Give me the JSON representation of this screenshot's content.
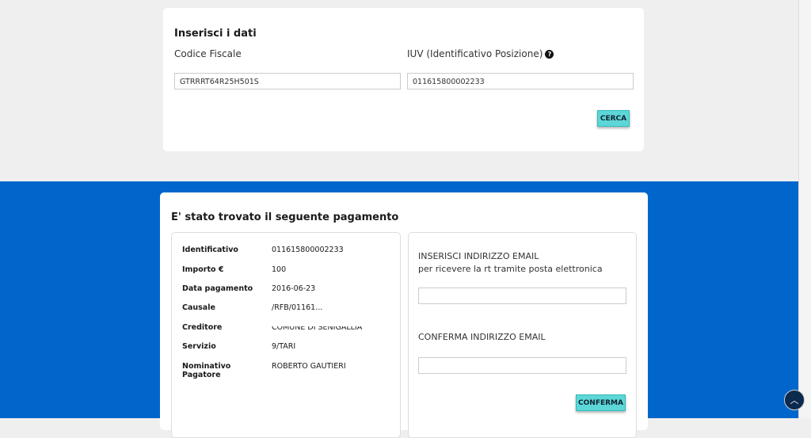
{
  "search": {
    "title": "Inserisci i dati",
    "cf_label": "Codice Fiscale",
    "cf_value": "GTRRRT64R25H501S",
    "iuv_label": "IUV (Identificativo Posizione)",
    "iuv_value": "011615800002233",
    "button": "CERCA"
  },
  "result": {
    "title": "E' stato trovato il seguente pagamento",
    "rows": [
      {
        "k": "Identificativo",
        "v": "011615800002233"
      },
      {
        "k": "Importo €",
        "v": "100"
      },
      {
        "k": "Data pagamento",
        "v": "2016-06-23"
      },
      {
        "k": "Causale",
        "v": "/RFB/01161..."
      },
      {
        "k": "Creditore",
        "v": "COMUNE DI SENIGALLIA"
      },
      {
        "k": "Servizio",
        "v": "9/TARI"
      },
      {
        "k": "Nominativo Pagatore",
        "v": "ROBERTO GAUTIERI"
      }
    ],
    "email_label": "INSERISCI INDIRIZZO EMAIL",
    "email_sub": "per ricevere la rt tramite posta elettronica",
    "email_value": "",
    "confirm_label": "CONFERMA INDIRIZZO EMAIL",
    "confirm_value": "",
    "button": "CONFERMA"
  },
  "colors": {
    "accent": "#5cd6d6",
    "band": "#0066cc"
  }
}
